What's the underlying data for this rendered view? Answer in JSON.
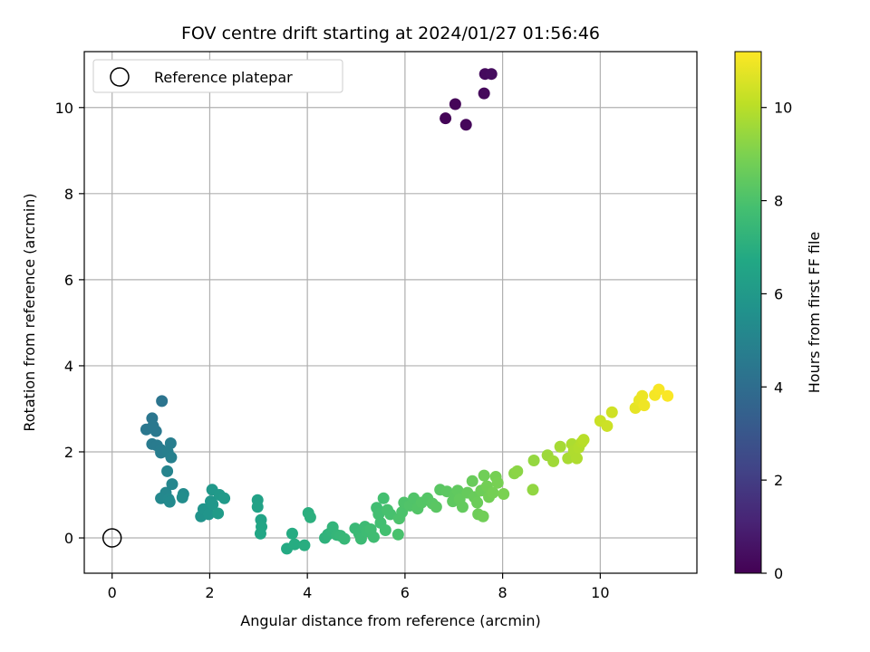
{
  "chart_data": {
    "type": "scatter",
    "title": "FOV centre drift starting at 2024/01/27 01:56:46",
    "xlabel": "Angular distance from reference (arcmin)",
    "ylabel": "Rotation from reference (arcmin)",
    "xlim": [
      -0.57,
      11.98
    ],
    "ylim": [
      -0.82,
      11.3
    ],
    "xticks": [
      0,
      2,
      4,
      6,
      8,
      10
    ],
    "yticks": [
      0,
      2,
      4,
      6,
      8,
      10
    ],
    "grid": true,
    "legend": {
      "placement": "top-left",
      "entries": [
        "Reference platepar"
      ]
    },
    "reference_point": {
      "x": 0,
      "y": 0
    },
    "colorbar": {
      "label": "Hours from first FF file",
      "colormap": "viridis",
      "range": [
        0,
        11.2
      ],
      "ticks": [
        0,
        2,
        4,
        6,
        8,
        10
      ]
    },
    "colormap_stops": [
      "#440154",
      "#482475",
      "#414487",
      "#355f8d",
      "#2a788e",
      "#21918c",
      "#22a884",
      "#44bf70",
      "#7ad151",
      "#bddf26",
      "#fde725"
    ],
    "points": [
      {
        "x": 6.83,
        "y": 9.75,
        "c": 0.1
      },
      {
        "x": 7.03,
        "y": 10.08,
        "c": 0.15
      },
      {
        "x": 7.25,
        "y": 9.6,
        "c": 0.2
      },
      {
        "x": 7.62,
        "y": 10.33,
        "c": 0.25
      },
      {
        "x": 7.64,
        "y": 10.78,
        "c": 0.3
      },
      {
        "x": 7.77,
        "y": 10.78,
        "c": 0.35
      },
      {
        "x": 1.02,
        "y": 3.18,
        "c": 4.3
      },
      {
        "x": 0.82,
        "y": 2.78,
        "c": 4.4
      },
      {
        "x": 0.7,
        "y": 2.52,
        "c": 4.45
      },
      {
        "x": 0.9,
        "y": 2.48,
        "c": 4.5
      },
      {
        "x": 0.84,
        "y": 2.6,
        "c": 4.5
      },
      {
        "x": 0.82,
        "y": 2.18,
        "c": 4.6
      },
      {
        "x": 0.92,
        "y": 2.15,
        "c": 4.6
      },
      {
        "x": 1.0,
        "y": 2.05,
        "c": 4.65
      },
      {
        "x": 1.0,
        "y": 1.98,
        "c": 4.7
      },
      {
        "x": 1.2,
        "y": 2.2,
        "c": 4.75
      },
      {
        "x": 1.14,
        "y": 2.0,
        "c": 4.8
      },
      {
        "x": 1.21,
        "y": 1.87,
        "c": 4.85
      },
      {
        "x": 1.13,
        "y": 1.55,
        "c": 5.0
      },
      {
        "x": 1.23,
        "y": 1.25,
        "c": 5.1
      },
      {
        "x": 1.1,
        "y": 1.05,
        "c": 5.15
      },
      {
        "x": 1.0,
        "y": 0.92,
        "c": 5.2
      },
      {
        "x": 1.16,
        "y": 0.9,
        "c": 5.25
      },
      {
        "x": 1.18,
        "y": 0.84,
        "c": 5.3
      },
      {
        "x": 1.46,
        "y": 1.02,
        "c": 5.35
      },
      {
        "x": 1.44,
        "y": 0.94,
        "c": 5.4
      },
      {
        "x": 1.82,
        "y": 0.5,
        "c": 5.7
      },
      {
        "x": 1.87,
        "y": 0.67,
        "c": 5.75
      },
      {
        "x": 1.98,
        "y": 0.55,
        "c": 5.8
      },
      {
        "x": 2.02,
        "y": 0.85,
        "c": 5.85
      },
      {
        "x": 2.06,
        "y": 0.78,
        "c": 5.9
      },
      {
        "x": 2.05,
        "y": 1.12,
        "c": 5.95
      },
      {
        "x": 2.2,
        "y": 1.0,
        "c": 6.0
      },
      {
        "x": 2.3,
        "y": 0.92,
        "c": 6.05
      },
      {
        "x": 2.17,
        "y": 0.57,
        "c": 6.1
      },
      {
        "x": 2.98,
        "y": 0.88,
        "c": 6.4
      },
      {
        "x": 2.98,
        "y": 0.72,
        "c": 6.45
      },
      {
        "x": 3.05,
        "y": 0.42,
        "c": 6.5
      },
      {
        "x": 3.06,
        "y": 0.26,
        "c": 6.55
      },
      {
        "x": 3.04,
        "y": 0.1,
        "c": 6.6
      },
      {
        "x": 3.58,
        "y": -0.25,
        "c": 6.8
      },
      {
        "x": 3.69,
        "y": 0.1,
        "c": 6.85
      },
      {
        "x": 3.74,
        "y": -0.15,
        "c": 6.9
      },
      {
        "x": 3.94,
        "y": -0.17,
        "c": 6.95
      },
      {
        "x": 4.02,
        "y": 0.58,
        "c": 7.0
      },
      {
        "x": 4.06,
        "y": 0.48,
        "c": 7.05
      },
      {
        "x": 4.36,
        "y": 0.0,
        "c": 7.15
      },
      {
        "x": 4.42,
        "y": 0.08,
        "c": 7.2
      },
      {
        "x": 4.5,
        "y": 0.15,
        "c": 7.25
      },
      {
        "x": 4.52,
        "y": 0.25,
        "c": 7.3
      },
      {
        "x": 4.6,
        "y": 0.07,
        "c": 7.35
      },
      {
        "x": 4.68,
        "y": 0.05,
        "c": 7.4
      },
      {
        "x": 4.76,
        "y": -0.02,
        "c": 7.45
      },
      {
        "x": 4.98,
        "y": 0.22,
        "c": 7.5
      },
      {
        "x": 5.06,
        "y": 0.1,
        "c": 7.55
      },
      {
        "x": 5.1,
        "y": -0.02,
        "c": 7.6
      },
      {
        "x": 5.18,
        "y": 0.26,
        "c": 7.6
      },
      {
        "x": 5.22,
        "y": 0.15,
        "c": 7.65
      },
      {
        "x": 5.3,
        "y": 0.2,
        "c": 7.7
      },
      {
        "x": 5.36,
        "y": 0.02,
        "c": 7.7
      },
      {
        "x": 5.42,
        "y": 0.7,
        "c": 7.75
      },
      {
        "x": 5.46,
        "y": 0.55,
        "c": 7.8
      },
      {
        "x": 5.5,
        "y": 0.35,
        "c": 7.8
      },
      {
        "x": 5.56,
        "y": 0.92,
        "c": 7.85
      },
      {
        "x": 5.6,
        "y": 0.18,
        "c": 7.85
      },
      {
        "x": 5.64,
        "y": 0.65,
        "c": 7.9
      },
      {
        "x": 5.7,
        "y": 0.55,
        "c": 7.9
      },
      {
        "x": 5.86,
        "y": 0.08,
        "c": 7.95
      },
      {
        "x": 5.88,
        "y": 0.45,
        "c": 8.0
      },
      {
        "x": 5.94,
        "y": 0.6,
        "c": 8.0
      },
      {
        "x": 5.98,
        "y": 0.82,
        "c": 8.05
      },
      {
        "x": 6.1,
        "y": 0.75,
        "c": 8.1
      },
      {
        "x": 6.18,
        "y": 0.92,
        "c": 8.1
      },
      {
        "x": 6.26,
        "y": 0.68,
        "c": 8.15
      },
      {
        "x": 6.34,
        "y": 0.82,
        "c": 8.2
      },
      {
        "x": 6.46,
        "y": 0.92,
        "c": 8.2
      },
      {
        "x": 6.56,
        "y": 0.8,
        "c": 8.25
      },
      {
        "x": 6.64,
        "y": 0.72,
        "c": 8.3
      },
      {
        "x": 6.72,
        "y": 1.12,
        "c": 8.3
      },
      {
        "x": 6.86,
        "y": 1.08,
        "c": 8.35
      },
      {
        "x": 6.98,
        "y": 0.85,
        "c": 8.4
      },
      {
        "x": 7.02,
        "y": 1.0,
        "c": 8.4
      },
      {
        "x": 7.08,
        "y": 1.1,
        "c": 8.45
      },
      {
        "x": 7.12,
        "y": 0.9,
        "c": 8.5
      },
      {
        "x": 7.18,
        "y": 0.72,
        "c": 8.5
      },
      {
        "x": 7.28,
        "y": 1.05,
        "c": 8.55
      },
      {
        "x": 7.38,
        "y": 1.32,
        "c": 8.6
      },
      {
        "x": 7.42,
        "y": 0.95,
        "c": 8.6
      },
      {
        "x": 7.48,
        "y": 0.82,
        "c": 8.65
      },
      {
        "x": 7.5,
        "y": 0.55,
        "c": 8.7
      },
      {
        "x": 7.56,
        "y": 1.1,
        "c": 8.7
      },
      {
        "x": 7.62,
        "y": 1.45,
        "c": 8.75
      },
      {
        "x": 7.6,
        "y": 0.5,
        "c": 8.75
      },
      {
        "x": 7.68,
        "y": 1.2,
        "c": 8.8
      },
      {
        "x": 7.72,
        "y": 0.95,
        "c": 8.8
      },
      {
        "x": 7.8,
        "y": 1.05,
        "c": 8.85
      },
      {
        "x": 7.86,
        "y": 1.42,
        "c": 8.85
      },
      {
        "x": 7.9,
        "y": 1.28,
        "c": 8.9
      },
      {
        "x": 8.02,
        "y": 1.02,
        "c": 8.95
      },
      {
        "x": 8.24,
        "y": 1.5,
        "c": 9.2
      },
      {
        "x": 8.3,
        "y": 1.55,
        "c": 9.25
      },
      {
        "x": 8.62,
        "y": 1.12,
        "c": 9.35
      },
      {
        "x": 8.64,
        "y": 1.8,
        "c": 9.4
      },
      {
        "x": 8.92,
        "y": 1.92,
        "c": 9.55
      },
      {
        "x": 9.04,
        "y": 1.78,
        "c": 9.6
      },
      {
        "x": 9.18,
        "y": 2.12,
        "c": 9.7
      },
      {
        "x": 9.34,
        "y": 1.85,
        "c": 9.75
      },
      {
        "x": 9.42,
        "y": 2.18,
        "c": 9.8
      },
      {
        "x": 9.46,
        "y": 2.02,
        "c": 9.85
      },
      {
        "x": 9.52,
        "y": 1.85,
        "c": 9.85
      },
      {
        "x": 9.56,
        "y": 2.1,
        "c": 9.9
      },
      {
        "x": 9.62,
        "y": 2.22,
        "c": 9.95
      },
      {
        "x": 9.66,
        "y": 2.28,
        "c": 10.0
      },
      {
        "x": 10.0,
        "y": 2.72,
        "c": 10.3
      },
      {
        "x": 10.14,
        "y": 2.6,
        "c": 10.35
      },
      {
        "x": 10.24,
        "y": 2.92,
        "c": 10.4
      },
      {
        "x": 10.72,
        "y": 3.02,
        "c": 10.8
      },
      {
        "x": 10.8,
        "y": 3.2,
        "c": 10.85
      },
      {
        "x": 10.86,
        "y": 3.3,
        "c": 10.9
      },
      {
        "x": 10.9,
        "y": 3.08,
        "c": 10.95
      },
      {
        "x": 11.12,
        "y": 3.32,
        "c": 11.05
      },
      {
        "x": 11.2,
        "y": 3.45,
        "c": 11.1
      },
      {
        "x": 11.38,
        "y": 3.3,
        "c": 11.15
      }
    ]
  }
}
